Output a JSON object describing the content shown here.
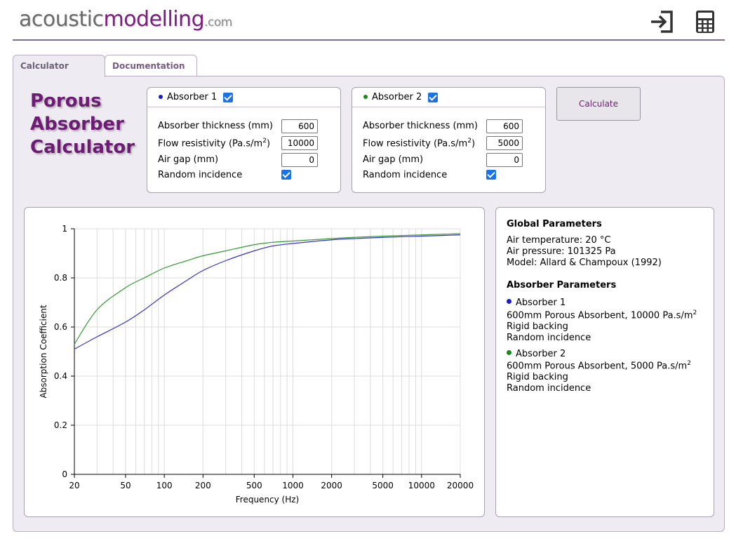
{
  "header": {
    "logo_part1": "acoustic",
    "logo_part2": "modelling",
    "logo_part3": ".com",
    "exit_icon": "sign-in-arrow-icon",
    "calc_icon": "calculator-icon"
  },
  "tabs": [
    {
      "label": "Calculator",
      "active": true
    },
    {
      "label": "Documentation",
      "active": false
    }
  ],
  "title": {
    "line1": "Porous",
    "line2": "Absorber",
    "line3": "Calculator"
  },
  "absorbers": [
    {
      "label": "Absorber 1",
      "color": "#1c1cc8",
      "enabled": true,
      "thickness_label": "Absorber thickness (mm)",
      "thickness": "600",
      "flow_label_pre": "Flow resistivity (Pa.s/m",
      "flow_label_sup": "2",
      "flow_label_post": ")",
      "flow": "10000",
      "airgap_label": "Air gap (mm)",
      "airgap": "0",
      "random_label": "Random incidence",
      "random": true
    },
    {
      "label": "Absorber 2",
      "color": "#1a8a1a",
      "enabled": true,
      "thickness_label": "Absorber thickness (mm)",
      "thickness": "600",
      "flow_label_pre": "Flow resistivity (Pa.s/m",
      "flow_label_sup": "2",
      "flow_label_post": ")",
      "flow": "5000",
      "airgap_label": "Air gap (mm)",
      "airgap": "0",
      "random_label": "Random incidence",
      "random": true
    }
  ],
  "calculate_label": "Calculate",
  "info": {
    "global_title": "Global Parameters",
    "air_temp": "Air temperature: 20 °C",
    "air_pressure": "Air pressure: 101325 Pa",
    "model": "Model: Allard & Champoux (1992)",
    "absorber_title": "Absorber Parameters",
    "a1_name": "Absorber 1",
    "a1_desc_pre": "600mm Porous Absorbent, 10000 Pa.s/m",
    "a1_desc_sup": "2",
    "a1_backing": "Rigid backing",
    "a1_incidence": "Random incidence",
    "a2_name": "Absorber 2",
    "a2_desc_pre": "600mm Porous Absorbent, 5000 Pa.s/m",
    "a2_desc_sup": "2",
    "a2_backing": "Rigid backing",
    "a2_incidence": "Random incidence"
  },
  "chart_data": {
    "type": "line",
    "xlabel": "Frequency (Hz)",
    "ylabel": "Absorption Coefficient",
    "xscale": "log",
    "xlim": [
      20,
      20000
    ],
    "ylim": [
      0,
      1
    ],
    "xticks": [
      20,
      50,
      100,
      200,
      500,
      1000,
      2000,
      5000,
      10000,
      20000
    ],
    "xtick_labels": [
      "20",
      "50",
      "100",
      "200",
      "500",
      "1000",
      "2000",
      "5000",
      "10000",
      "20000"
    ],
    "yticks": [
      0,
      0.2,
      0.4,
      0.6,
      0.8,
      1
    ],
    "ytick_labels": [
      "0",
      "0.2",
      "0.4",
      "0.6",
      "0.8",
      "1"
    ],
    "grid": true,
    "legend": "none",
    "series": [
      {
        "color": "#3333cc",
        "x": [
          20,
          30,
          50,
          70,
          100,
          150,
          200,
          300,
          500,
          700,
          1000,
          2000,
          3000,
          5000,
          10000,
          20000
        ],
        "values": [
          0.51,
          0.56,
          0.62,
          0.67,
          0.73,
          0.79,
          0.83,
          0.87,
          0.91,
          0.93,
          0.94,
          0.955,
          0.96,
          0.965,
          0.97,
          0.975
        ]
      },
      {
        "color": "#339933",
        "x": [
          20,
          30,
          50,
          70,
          100,
          150,
          200,
          300,
          500,
          700,
          1000,
          2000,
          3000,
          5000,
          10000,
          20000
        ],
        "values": [
          0.53,
          0.67,
          0.76,
          0.8,
          0.84,
          0.87,
          0.89,
          0.91,
          0.935,
          0.945,
          0.95,
          0.96,
          0.965,
          0.97,
          0.975,
          0.98
        ]
      }
    ]
  }
}
